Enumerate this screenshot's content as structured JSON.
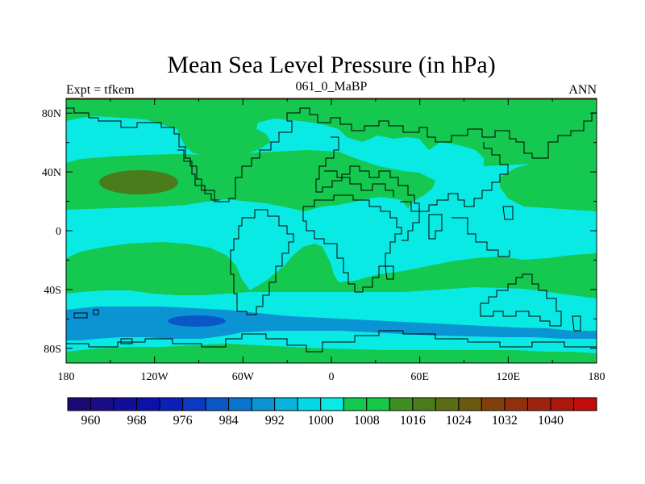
{
  "chart_data": {
    "type": "heatmap",
    "title": "Mean Sea Level Pressure (in hPa)",
    "left_label": "Expt = tfkem",
    "center_label": "061_0_MaBP",
    "right_label": "ANN",
    "x_ticks": [
      "180",
      "120W",
      "60W",
      "0",
      "60E",
      "120E",
      "180"
    ],
    "y_ticks": [
      "80N",
      "40N",
      "0",
      "40S",
      "80S"
    ],
    "xlim": [
      -180,
      180
    ],
    "ylim": [
      -90,
      90
    ],
    "colorbar": {
      "labels": [
        "960",
        "968",
        "976",
        "984",
        "992",
        "1000",
        "1008",
        "1016",
        "1024",
        "1032",
        "1040"
      ],
      "label_values": [
        960,
        968,
        976,
        984,
        992,
        1000,
        1008,
        1016,
        1024,
        1032,
        1040
      ],
      "levels": [
        956,
        960,
        964,
        968,
        972,
        976,
        980,
        984,
        988,
        992,
        996,
        1000,
        1004,
        1008,
        1012,
        1016,
        1020,
        1024,
        1028,
        1032,
        1036,
        1040,
        1044
      ],
      "colors": [
        "#1c0a74",
        "#190c87",
        "#130e98",
        "#0c12a8",
        "#0a20b6",
        "#0a39c2",
        "#0b57c8",
        "#0b74cc",
        "#0b94d4",
        "#08b4dc",
        "#04d8e4",
        "#0aeae4",
        "#14c850",
        "#16c848",
        "#3f8e22",
        "#4a7c1c",
        "#5a6c14",
        "#6a5a10",
        "#84400c",
        "#90300c",
        "#9c240c",
        "#ac180c",
        "#c00c0c"
      ]
    },
    "pressure_fields": [
      {
        "level": "996-1000",
        "color": "#0aeae4",
        "region": "background"
      },
      {
        "level": "1000-1004",
        "color": "#14c850",
        "region": "subtropical highs, polar areas"
      },
      {
        "level": "1012-1016",
        "color": "#4a7c1c",
        "region": "north pacific high core"
      },
      {
        "level": "992-996",
        "color": "#04d8e4",
        "region": "southern mid-latitudes"
      },
      {
        "level": "984-988",
        "color": "#0b94d4",
        "region": "southern ocean trough"
      },
      {
        "level": "976-980",
        "color": "#0b57c8",
        "region": "southern ocean trough core"
      }
    ]
  }
}
